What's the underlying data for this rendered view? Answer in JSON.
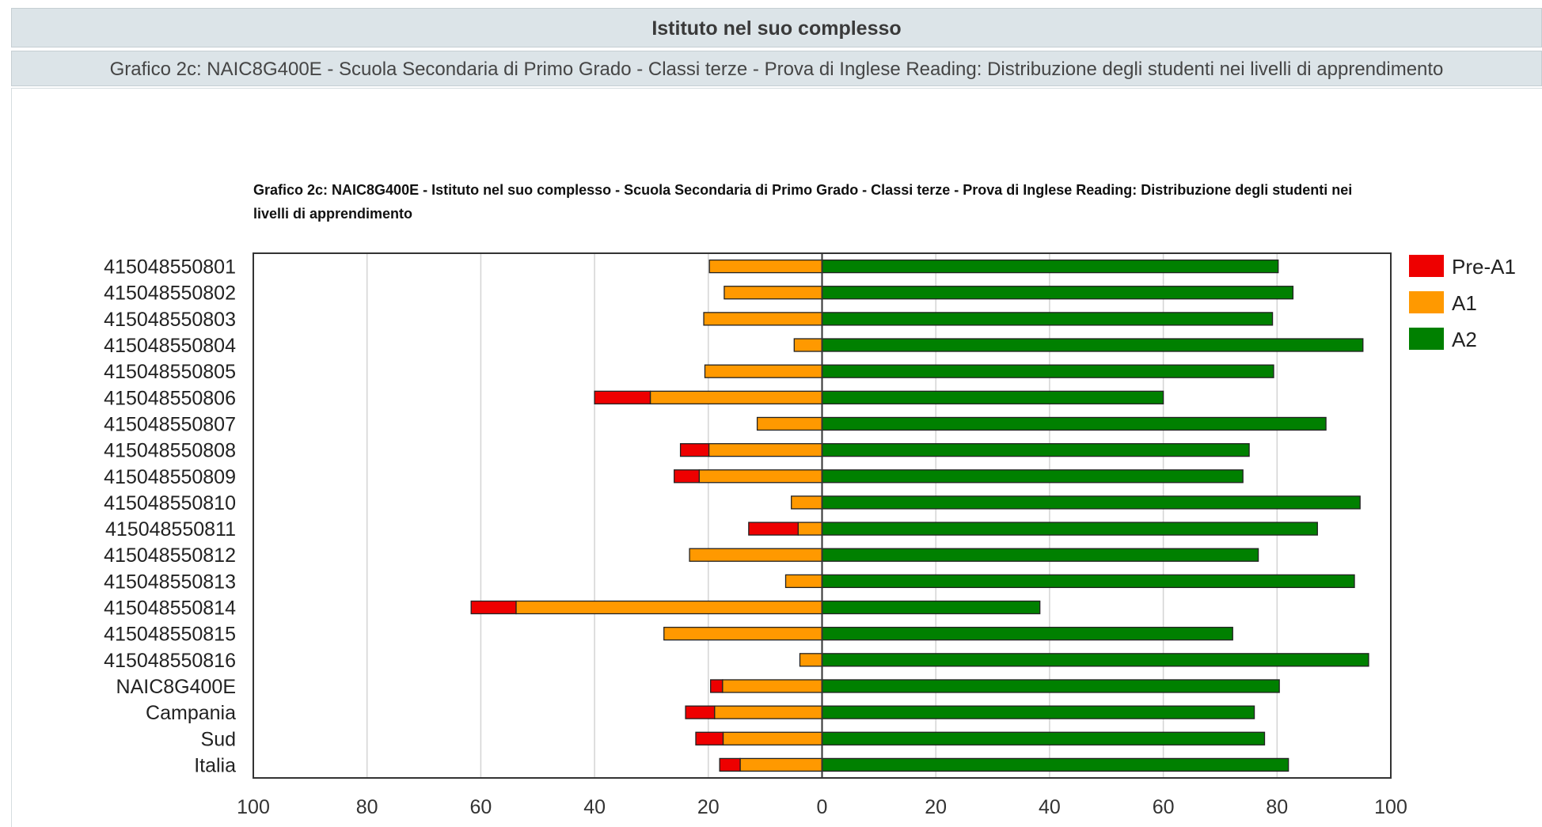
{
  "header": {
    "title": "Istituto nel suo complesso",
    "subtitle": "Grafico 2c: NAIC8G400E - Scuola Secondaria di Primo Grado - Classi terze - Prova di Inglese Reading: Distribuzione degli studenti nei livelli di apprendimento"
  },
  "chart_data": {
    "type": "bar",
    "orientation": "horizontal-diverging",
    "title": "Grafico 2c: NAIC8G400E - Istituto nel suo complesso - Scuola Secondaria di Primo Grado - Classi terze - Prova di Inglese Reading: Distribuzione degli studenti nei livelli di apprendimento",
    "categories": [
      "415048550801",
      "415048550802",
      "415048550803",
      "415048550804",
      "415048550805",
      "415048550806",
      "415048550807",
      "415048550808",
      "415048550809",
      "415048550810",
      "415048550811",
      "415048550812",
      "415048550813",
      "415048550814",
      "415048550815",
      "415048550816",
      "NAIC8G400E",
      "Campania",
      "Sud",
      "Italia"
    ],
    "series": [
      {
        "name": "Pre-A1",
        "color": "#ee0000",
        "direction": "left",
        "values": [
          0,
          0,
          0,
          0,
          0,
          9.8,
          0,
          5.0,
          4.4,
          0,
          8.7,
          0,
          0,
          7.9,
          0,
          0,
          2.1,
          5.1,
          4.8,
          3.6
        ]
      },
      {
        "name": "A1",
        "color": "#ff9900",
        "direction": "left",
        "values": [
          19.8,
          17.2,
          20.8,
          4.9,
          20.6,
          30.2,
          11.4,
          19.9,
          21.6,
          5.4,
          4.2,
          23.3,
          6.4,
          53.8,
          27.8,
          3.9,
          17.5,
          18.9,
          17.4,
          14.4
        ]
      },
      {
        "name": "A2",
        "color": "#008000",
        "direction": "right",
        "values": [
          80.2,
          82.8,
          79.2,
          95.1,
          79.4,
          60.0,
          88.6,
          75.1,
          74.0,
          94.6,
          87.1,
          76.7,
          93.6,
          38.3,
          72.2,
          96.1,
          80.4,
          76.0,
          77.8,
          82.0
        ]
      }
    ],
    "x_ticks": [
      "100",
      "80",
      "60",
      "40",
      "20",
      "0",
      "20",
      "40",
      "60",
      "80",
      "100"
    ],
    "xlim": [
      -100,
      100
    ],
    "grid": true,
    "legend_position": "right"
  }
}
